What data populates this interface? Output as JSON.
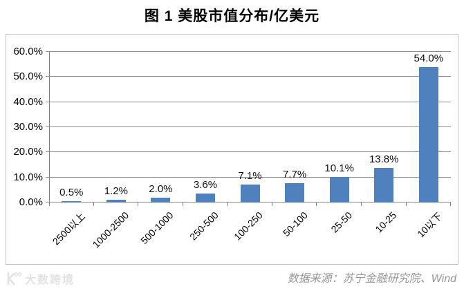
{
  "page": {
    "title": "图 1  美股市值分布/亿美元"
  },
  "chart_data": {
    "type": "bar",
    "title": "图 1 美股市值分布/亿美元",
    "categories": [
      "2500以上",
      "1000-2500",
      "500-1000",
      "250-500",
      "100-250",
      "50-100",
      "25-50",
      "10-25",
      "10以下"
    ],
    "values": [
      0.5,
      1.2,
      2.0,
      3.6,
      7.1,
      7.7,
      10.1,
      13.8,
      54.0
    ],
    "data_labels": [
      "0.5%",
      "1.2%",
      "2.0%",
      "3.6%",
      "7.1%",
      "7.7%",
      "10.1%",
      "13.8%",
      "54.0%"
    ],
    "xlabel": "",
    "ylabel": "",
    "ylim": [
      0,
      60
    ],
    "ytick_labels": [
      "0.0%",
      "10.0%",
      "20.0%",
      "30.0%",
      "40.0%",
      "50.0%",
      "60.0%"
    ],
    "grid": true,
    "legend": false,
    "x_label_rotation_deg": -45
  },
  "footer": {
    "watermark_text": "大数跨境",
    "source_text": "数据来源：苏宁金融研究院、Wind"
  },
  "colors": {
    "bar": "#4d80bc",
    "gridline": "#8d8d8d",
    "axis": "#7f7f7f",
    "frame_border": "#c2c2c2",
    "title_text": "#000000",
    "source_text": "#969696",
    "watermark": "#e2e2e2"
  }
}
